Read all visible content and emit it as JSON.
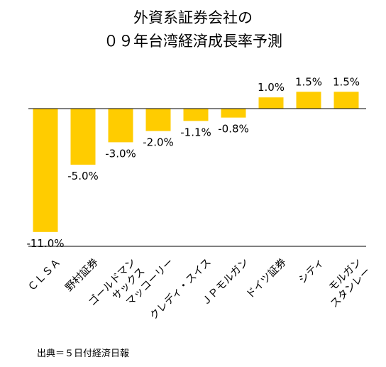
{
  "chart_data": {
    "type": "bar",
    "title": [
      "外資系証券会社の",
      "０９年台湾経済成長率予測"
    ],
    "xlabel": "",
    "ylabel": "",
    "ylim": [
      -11,
      1.5
    ],
    "grid": false,
    "legend": "none",
    "bar_color": "#FFCC00",
    "categories": [
      [
        "ＣＬＳＡ"
      ],
      [
        "野村証券"
      ],
      [
        "ゴールドマン",
        "サックス"
      ],
      [
        "マッコーリー"
      ],
      [
        "クレディ・スイス"
      ],
      [
        "ＪＰモルガン"
      ],
      [
        "ドイツ証券"
      ],
      [
        "シティ"
      ],
      [
        "モルガン",
        "スタンレー"
      ]
    ],
    "values": [
      -11.0,
      -5.0,
      -3.0,
      -2.0,
      -1.1,
      -0.8,
      1.0,
      1.5,
      1.5
    ],
    "value_labels": [
      "-11.0%",
      "-5.0%",
      "-3.0%",
      "-2.0%",
      "-1.1%",
      "-0.8%",
      "1.0%",
      "1.5%",
      "1.5%"
    ]
  },
  "source": "出典＝５日付経済日報"
}
